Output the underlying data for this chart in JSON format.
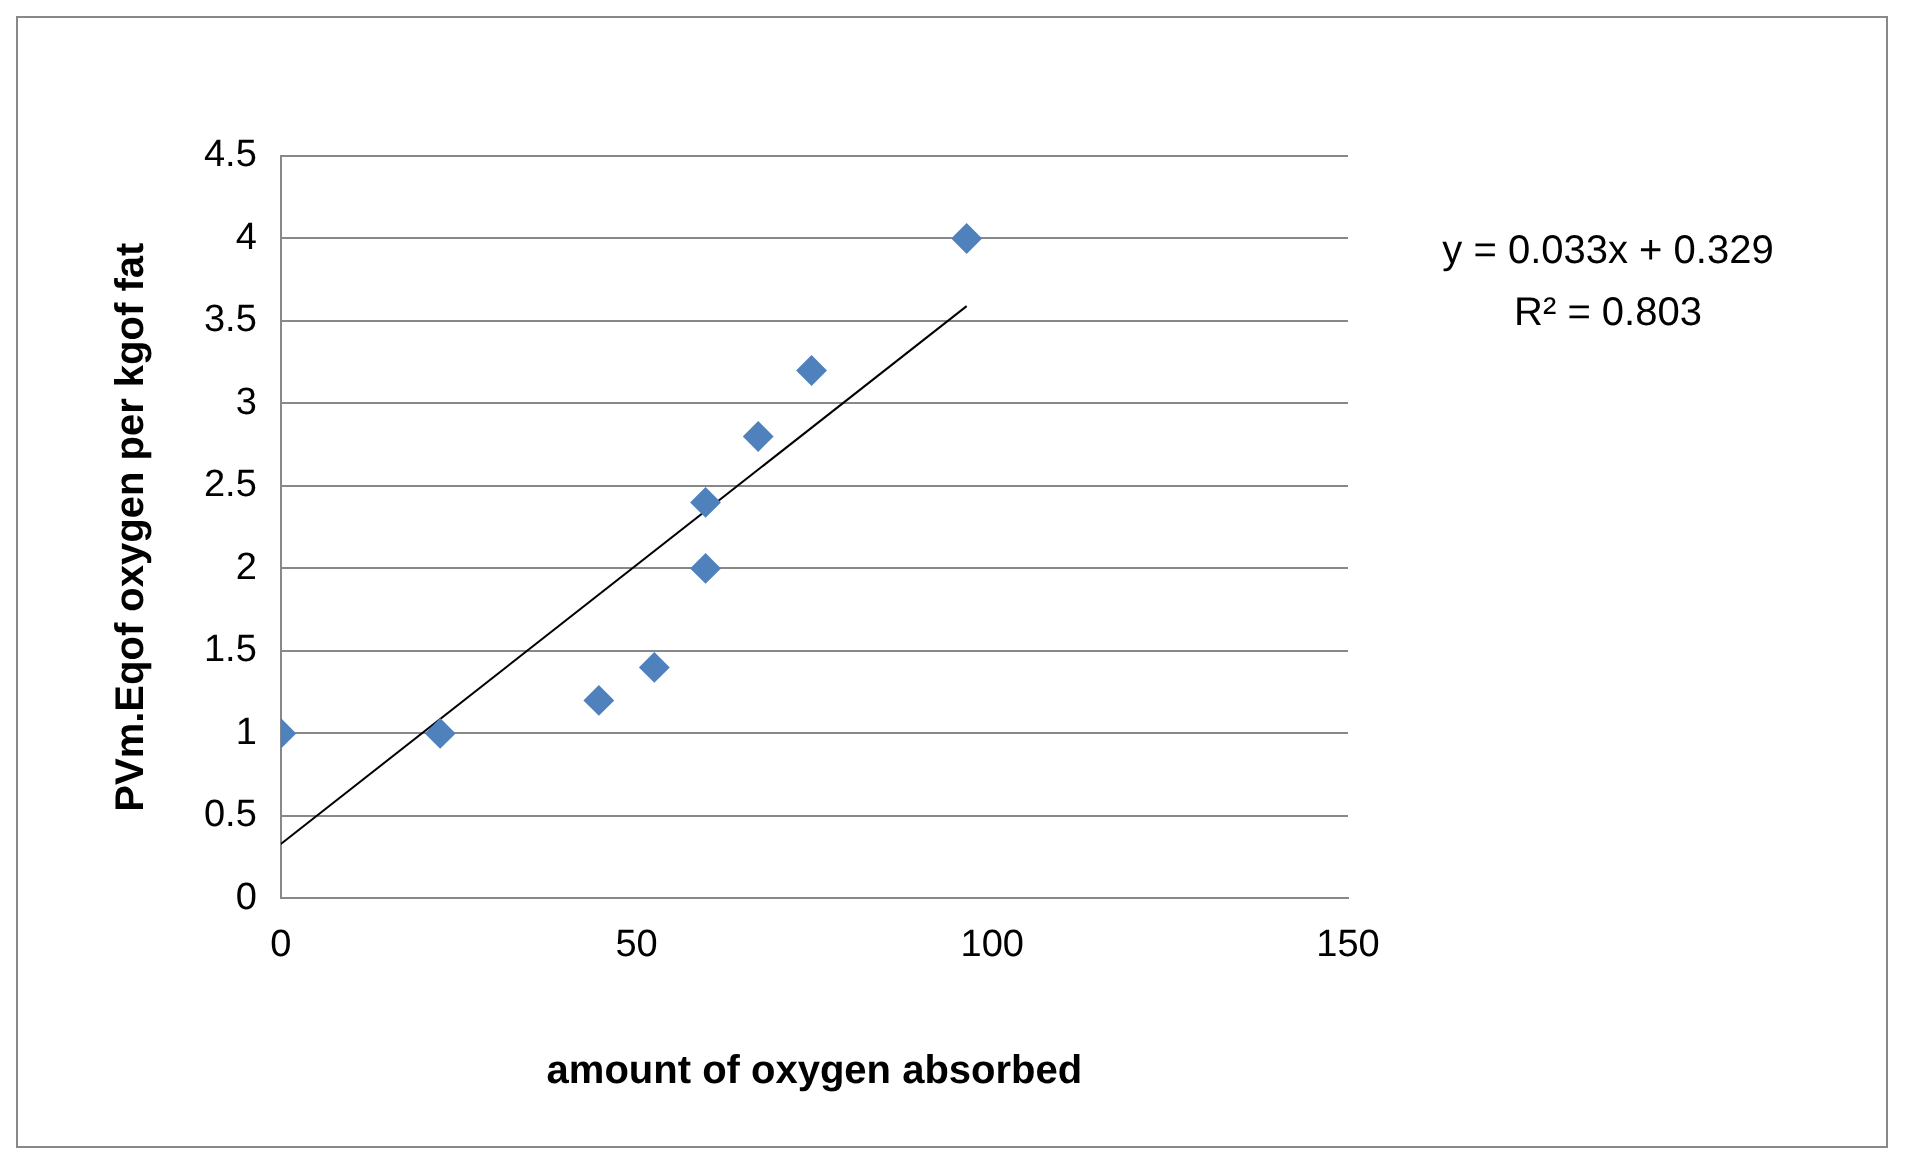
{
  "chart_data": {
    "type": "scatter",
    "xlabel": "amount of oxygen absorbed",
    "ylabel": "PVm.Eqof oxygen per kgof fat",
    "series": [
      {
        "type": "scatter",
        "color": "#4f81bd",
        "marker": "diamond",
        "x": [
          0,
          22.4,
          44.7,
          52.5,
          59.7,
          59.7,
          67.1,
          74.6,
          96.4
        ],
        "values": [
          1,
          1,
          1.2,
          1.4,
          2.0,
          2.4,
          2.8,
          3.2,
          4.0
        ]
      },
      {
        "type": "line",
        "color": "#000000",
        "marker": "none",
        "x": [
          0,
          96.4
        ],
        "values": [
          0.33,
          3.59
        ]
      }
    ],
    "xlim": [
      0,
      150
    ],
    "xticks": [
      0,
      50,
      100,
      150
    ],
    "ylim": [
      0,
      4.5
    ],
    "yticks": [
      0,
      0.5,
      1,
      1.5,
      2,
      2.5,
      3,
      3.5,
      4,
      4.5
    ],
    "grid": "y",
    "legend": false,
    "annotations": [
      "y = 0.033x + 0.329",
      "R² = 0.803"
    ]
  }
}
